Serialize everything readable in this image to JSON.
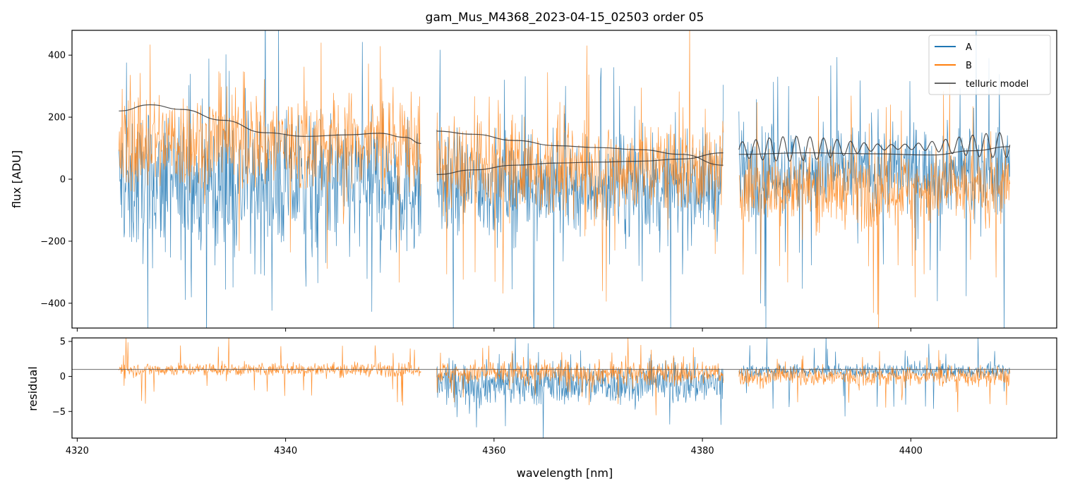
{
  "chart_data": [
    {
      "type": "line",
      "title": "gam_Mus_M4368_2023-04-15_02503  order 05",
      "xlabel": "",
      "ylabel": "flux [ADU]",
      "xlim": [
        4319.5,
        4414.0
      ],
      "ylim": [
        -480,
        480
      ],
      "yticks": [
        400,
        200,
        0,
        -200,
        -400
      ],
      "ytick_labels": [
        "400",
        "200",
        "0",
        "−200",
        "−400"
      ],
      "xticks": [
        4320,
        4340,
        4360,
        4380,
        4400
      ],
      "grid": false,
      "legend": "top-right",
      "colors": {
        "A": "#1f77b4",
        "B": "#ff7f0e",
        "model": "#333333"
      },
      "chunks": [
        {
          "x0": 4324.0,
          "x1": 4353.0,
          "noiseA": 210,
          "biasA": -20,
          "noiseB": 150,
          "biasB": 120
        },
        {
          "x0": 4354.5,
          "x1": 4382.0,
          "noiseA": 150,
          "biasA": -20,
          "noiseB": 140,
          "biasB": 40
        },
        {
          "x0": 4383.5,
          "x1": 4409.5,
          "noiseA": 130,
          "biasA": 30,
          "noiseB": 110,
          "biasB": -30
        }
      ],
      "series": [
        {
          "name": "A",
          "style": "spectrum"
        },
        {
          "name": "B",
          "style": "spectrum"
        },
        {
          "name": "telluric model",
          "style": "model"
        }
      ],
      "model_curves": [
        {
          "x": [
            4324.0,
            4327.0,
            4330.0,
            4334.0,
            4338.0,
            4342.0,
            4346.0,
            4349.0,
            4351.5,
            4353.0
          ],
          "y": [
            220,
            240,
            225,
            190,
            150,
            138,
            143,
            148,
            135,
            115
          ]
        },
        {
          "x": [
            4354.5,
            4358.0,
            4362.0,
            4366.0,
            4370.0,
            4374.0,
            4378.0,
            4382.0
          ],
          "y": [
            155,
            145,
            125,
            108,
            102,
            95,
            80,
            45
          ]
        },
        {
          "x": [
            4354.5,
            4358.0,
            4362.0,
            4366.0,
            4370.0,
            4374.0,
            4378.0,
            4382.0
          ],
          "y": [
            15,
            30,
            45,
            52,
            55,
            58,
            65,
            85
          ]
        },
        {
          "x": [
            4383.5,
            4390.0,
            4396.0,
            4402.0,
            4406.0,
            4409.5
          ],
          "y": [
            80,
            85,
            82,
            78,
            92,
            105
          ]
        }
      ],
      "model_oscillation": {
        "x0": 4383.5,
        "x1": 4409.5,
        "base": 95,
        "amplitude": 40,
        "period": 1.3
      }
    },
    {
      "type": "line",
      "title": "",
      "xlabel": "wavelength [nm]",
      "ylabel": "residual",
      "xlim": [
        4319.5,
        4414.0
      ],
      "ylim": [
        -8.8,
        5.5
      ],
      "yticks": [
        5,
        0,
        -5
      ],
      "ytick_labels": [
        "5",
        "0",
        "−5"
      ],
      "xticks": [
        4320,
        4340,
        4360,
        4380,
        4400
      ],
      "xtick_labels": [
        "4320",
        "4340",
        "4360",
        "4380",
        "4400"
      ],
      "reference_line": 1.0,
      "chunks": [
        {
          "x0": 4324.0,
          "x1": 4353.0,
          "showA": false,
          "noiseA": 0,
          "biasA": 0,
          "noiseB": 0.9,
          "biasB": 1.0
        },
        {
          "x0": 4354.5,
          "x1": 4382.0,
          "showA": true,
          "noiseA": 2.8,
          "biasA": -1.0,
          "noiseB": 1.6,
          "biasB": 0.5
        },
        {
          "x0": 4383.5,
          "x1": 4409.5,
          "showA": true,
          "noiseA": 0.9,
          "biasA": 0.8,
          "noiseB": 1.3,
          "biasB": 0.0
        }
      ]
    }
  ]
}
